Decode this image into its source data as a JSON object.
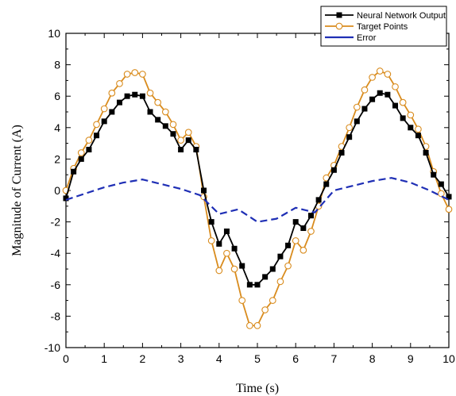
{
  "chart_data": {
    "type": "line",
    "title": "",
    "xlabel": "Time (s)",
    "ylabel": "Magnitude of Current (A)",
    "xlim": [
      0,
      10
    ],
    "ylim": [
      -10,
      10
    ],
    "x_ticks": [
      0,
      1,
      2,
      3,
      4,
      5,
      6,
      7,
      8,
      9,
      10
    ],
    "y_ticks": [
      -10,
      -8,
      -6,
      -4,
      -2,
      0,
      2,
      4,
      6,
      8,
      10
    ],
    "grid": false,
    "legend_position": "top-right",
    "series": [
      {
        "name": "Neural Network Output",
        "color": "#000000",
        "marker": "square",
        "x": [
          0,
          0.2,
          0.4,
          0.6,
          0.8,
          1.0,
          1.2,
          1.4,
          1.6,
          1.8,
          2.0,
          2.2,
          2.4,
          2.6,
          2.8,
          3.0,
          3.2,
          3.4,
          3.6,
          3.8,
          4.0,
          4.2,
          4.4,
          4.6,
          4.8,
          5.0,
          5.2,
          5.4,
          5.6,
          5.8,
          6.0,
          6.2,
          6.4,
          6.6,
          6.8,
          7.0,
          7.2,
          7.4,
          7.6,
          7.8,
          8.0,
          8.2,
          8.4,
          8.6,
          8.8,
          9.0,
          9.2,
          9.4,
          9.6,
          9.8,
          10.0
        ],
        "y": [
          -0.5,
          1.2,
          2.0,
          2.6,
          3.5,
          4.4,
          5.0,
          5.6,
          6.0,
          6.1,
          6.0,
          5.0,
          4.5,
          4.1,
          3.6,
          2.6,
          3.2,
          2.6,
          0,
          -2.0,
          -3.4,
          -2.6,
          -3.7,
          -4.8,
          -6.0,
          -6.0,
          -5.5,
          -5.0,
          -4.2,
          -3.5,
          -2.0,
          -2.4,
          -1.6,
          -0.6,
          0.4,
          1.3,
          2.4,
          3.4,
          4.4,
          5.2,
          5.8,
          6.2,
          6.1,
          5.4,
          4.6,
          4.0,
          3.5,
          2.4,
          1.0,
          0.4,
          -0.4
        ]
      },
      {
        "name": "Target Points",
        "color": "#D98C1E",
        "marker": "circle",
        "x": [
          0,
          0.2,
          0.4,
          0.6,
          0.8,
          1.0,
          1.2,
          1.4,
          1.6,
          1.8,
          2.0,
          2.2,
          2.4,
          2.6,
          2.8,
          3.0,
          3.2,
          3.4,
          3.6,
          3.8,
          4.0,
          4.2,
          4.4,
          4.6,
          4.8,
          5.0,
          5.2,
          5.4,
          5.6,
          5.8,
          6.0,
          6.2,
          6.4,
          6.6,
          6.8,
          7.0,
          7.2,
          7.4,
          7.6,
          7.8,
          8.0,
          8.2,
          8.4,
          8.6,
          8.8,
          9.0,
          9.2,
          9.4,
          9.6,
          9.8,
          10.0
        ],
        "y": [
          0,
          1.4,
          2.4,
          3.2,
          4.2,
          5.2,
          6.2,
          6.8,
          7.4,
          7.5,
          7.4,
          6.2,
          5.6,
          5.0,
          4.2,
          3.2,
          3.7,
          2.8,
          -0.4,
          -3.2,
          -5.1,
          -4.0,
          -5.0,
          -7.0,
          -8.6,
          -8.6,
          -7.6,
          -7.0,
          -5.8,
          -4.8,
          -3.2,
          -3.8,
          -2.6,
          -1.0,
          0.8,
          1.6,
          2.8,
          4.0,
          5.3,
          6.4,
          7.2,
          7.6,
          7.4,
          6.6,
          5.6,
          4.8,
          3.9,
          2.8,
          1.2,
          -0.2,
          -1.2
        ]
      },
      {
        "name": "Error",
        "color": "#1F2FB5",
        "marker": "none",
        "dash": "dashed",
        "x": [
          0,
          0.5,
          1.0,
          1.5,
          2.0,
          2.5,
          3.0,
          3.5,
          4.0,
          4.5,
          5.0,
          5.5,
          6.0,
          6.5,
          7.0,
          7.5,
          8.0,
          8.5,
          9.0,
          9.5,
          10.0
        ],
        "y": [
          -0.6,
          -0.2,
          0.2,
          0.5,
          0.7,
          0.4,
          0.1,
          -0.3,
          -1.5,
          -1.2,
          -2.0,
          -1.8,
          -1.1,
          -1.4,
          0,
          0.3,
          0.6,
          0.8,
          0.5,
          0,
          -0.6
        ]
      }
    ]
  }
}
